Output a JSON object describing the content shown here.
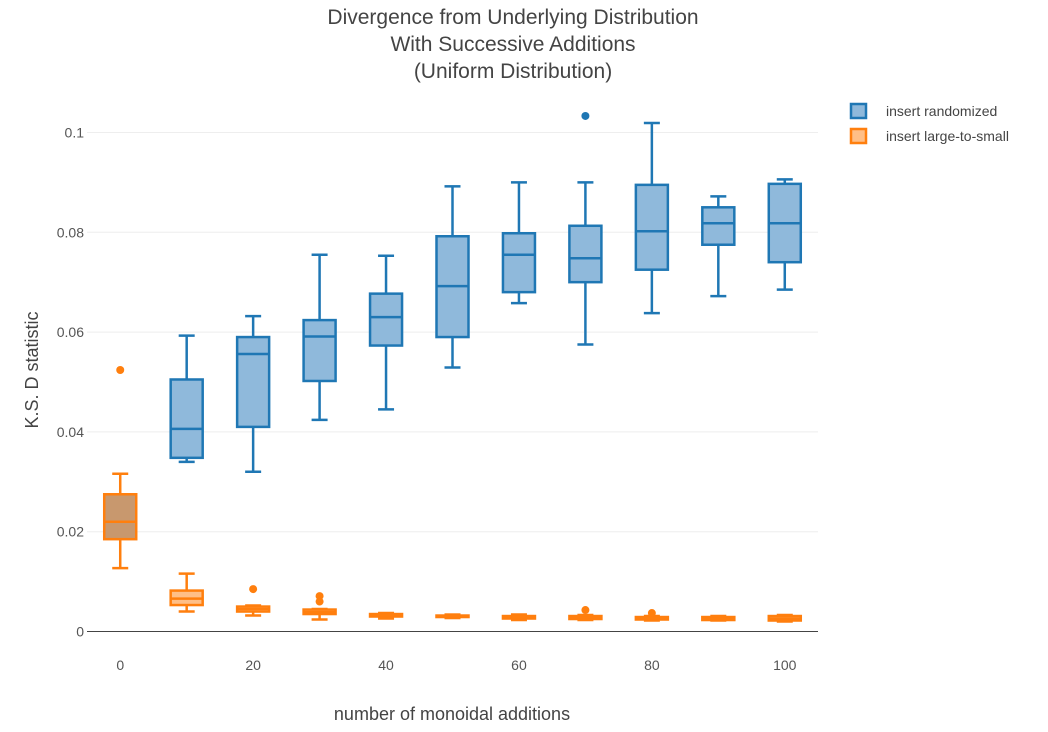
{
  "chart_data": {
    "type": "box",
    "title_lines": [
      "Divergence from Underlying Distribution",
      "With Successive Additions",
      "(Uniform Distribution)"
    ],
    "xlabel": "number of monoidal additions",
    "ylabel": "K.S. D statistic",
    "xlim": [
      -5,
      105
    ],
    "ylim": [
      -0.0003,
      0.1055
    ],
    "x_ticks": [
      0,
      20,
      40,
      60,
      80,
      100
    ],
    "y_ticks": [
      0,
      0.02,
      0.04,
      0.06,
      0.08,
      0.1
    ],
    "y_tick_labels": [
      "0",
      "0.02",
      "0.04",
      "0.06",
      "0.08",
      "0.1"
    ],
    "grid": "horizontal",
    "legend_position": "top-right",
    "series": [
      {
        "name": "insert randomized",
        "color": "#1f77b4",
        "fill": "#8fb9db",
        "boxes": [
          {
            "x": 10,
            "min": 0.034,
            "q1": 0.0348,
            "median": 0.0406,
            "q3": 0.0505,
            "max": 0.0593,
            "outliers": []
          },
          {
            "x": 20,
            "min": 0.032,
            "q1": 0.041,
            "median": 0.0556,
            "q3": 0.059,
            "max": 0.0632,
            "outliers": []
          },
          {
            "x": 30,
            "min": 0.0424,
            "q1": 0.0502,
            "median": 0.0591,
            "q3": 0.0624,
            "max": 0.0755,
            "outliers": []
          },
          {
            "x": 40,
            "min": 0.0445,
            "q1": 0.0573,
            "median": 0.063,
            "q3": 0.0677,
            "max": 0.0753,
            "outliers": []
          },
          {
            "x": 50,
            "min": 0.0529,
            "q1": 0.059,
            "median": 0.0692,
            "q3": 0.0792,
            "max": 0.0892,
            "outliers": []
          },
          {
            "x": 60,
            "min": 0.0658,
            "q1": 0.068,
            "median": 0.0755,
            "q3": 0.0798,
            "max": 0.09,
            "outliers": []
          },
          {
            "x": 70,
            "min": 0.0575,
            "q1": 0.07,
            "median": 0.0748,
            "q3": 0.0813,
            "max": 0.09,
            "outliers": [
              0.1033
            ]
          },
          {
            "x": 80,
            "min": 0.0638,
            "q1": 0.0725,
            "median": 0.0802,
            "q3": 0.0895,
            "max": 0.1019,
            "outliers": []
          },
          {
            "x": 90,
            "min": 0.0672,
            "q1": 0.0775,
            "median": 0.0818,
            "q3": 0.085,
            "max": 0.0872,
            "outliers": []
          },
          {
            "x": 100,
            "min": 0.0685,
            "q1": 0.074,
            "median": 0.0818,
            "q3": 0.0897,
            "max": 0.0906,
            "outliers": []
          }
        ]
      },
      {
        "name": "insert large-to-small",
        "color": "#ff7f0e",
        "fill": "#ffbf87",
        "boxes": [
          {
            "x": 0,
            "min": 0.0127,
            "q1": 0.0185,
            "median": 0.022,
            "q3": 0.0275,
            "max": 0.0316,
            "outliers": [
              0.0524
            ],
            "fill": "#c8986e"
          },
          {
            "x": 10,
            "min": 0.004,
            "q1": 0.0053,
            "median": 0.0066,
            "q3": 0.0082,
            "max": 0.0116,
            "outliers": []
          },
          {
            "x": 20,
            "min": 0.0032,
            "q1": 0.004,
            "median": 0.0045,
            "q3": 0.005,
            "max": 0.0052,
            "outliers": [
              0.0085
            ]
          },
          {
            "x": 30,
            "min": 0.0024,
            "q1": 0.0035,
            "median": 0.0039,
            "q3": 0.0044,
            "max": 0.0045,
            "outliers": [
              0.006,
              0.0071
            ]
          },
          {
            "x": 40,
            "min": 0.0026,
            "q1": 0.003,
            "median": 0.0033,
            "q3": 0.0035,
            "max": 0.0037,
            "outliers": []
          },
          {
            "x": 50,
            "min": 0.0027,
            "q1": 0.0029,
            "median": 0.0031,
            "q3": 0.0032,
            "max": 0.0034,
            "outliers": []
          },
          {
            "x": 60,
            "min": 0.0023,
            "q1": 0.0026,
            "median": 0.0029,
            "q3": 0.0031,
            "max": 0.0034,
            "outliers": []
          },
          {
            "x": 70,
            "min": 0.0023,
            "q1": 0.0025,
            "median": 0.0028,
            "q3": 0.0031,
            "max": 0.0033,
            "outliers": [
              0.0043
            ]
          },
          {
            "x": 80,
            "min": 0.0022,
            "q1": 0.0024,
            "median": 0.0027,
            "q3": 0.0029,
            "max": 0.0031,
            "outliers": [
              0.0037
            ]
          },
          {
            "x": 90,
            "min": 0.0022,
            "q1": 0.0023,
            "median": 0.0025,
            "q3": 0.0029,
            "max": 0.0031,
            "outliers": []
          },
          {
            "x": 100,
            "min": 0.002,
            "q1": 0.0022,
            "median": 0.0026,
            "q3": 0.0031,
            "max": 0.0033,
            "outliers": []
          }
        ]
      }
    ]
  }
}
